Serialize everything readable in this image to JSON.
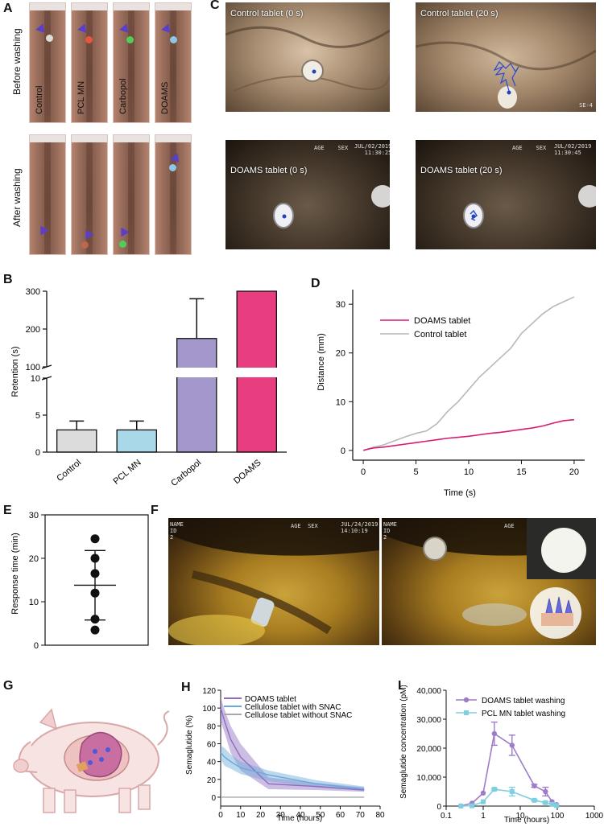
{
  "panels": {
    "A": "A",
    "B": "B",
    "C": "C",
    "D": "D",
    "E": "E",
    "F": "F",
    "G": "G",
    "H": "H",
    "I": "I"
  },
  "panel_a": {
    "row_labels": [
      "Before washing",
      "After washing"
    ],
    "columns": [
      "Control",
      "PCL MN",
      "Carbopol",
      "DOAMS"
    ],
    "colors": {
      "control_dot": "#dcdcdc",
      "pcl_dot": "#e8553c",
      "carbopol_dot": "#4fcf58",
      "doams_dot": "#8fc6e8",
      "arrow": "#5b3fc6"
    }
  },
  "panel_c": {
    "captions": [
      "Control tablet (0 s)",
      "Control tablet (20 s)",
      "DOAMS tablet (0 s)",
      "DOAMS tablet (20 s)"
    ],
    "hud": {
      "age": "AGE",
      "sex": "SEX",
      "date": "JUL/02/2019",
      "time1": "11:30:25",
      "time2": "11:30:45",
      "mark": "SE-4"
    }
  },
  "panel_f": {
    "hud": {
      "name": "NAME",
      "id": "ID",
      "id_value": "2",
      "age": "AGE",
      "sex": "SEX",
      "date": "JUL/24/2019",
      "time": "14:10:19"
    }
  },
  "chart_data": [
    {
      "panel": "B",
      "type": "bar",
      "categories": [
        "Control",
        "PCL MN",
        "Carbopol",
        "DOAMS"
      ],
      "values": [
        3,
        3,
        175,
        300
      ],
      "errors": [
        1.2,
        1.2,
        105,
        0
      ],
      "colors": [
        "#dcdcdc",
        "#a9d8e8",
        "#a497cc",
        "#e83e80"
      ],
      "ylabel": "Retention (s)",
      "ylim": [
        0,
        300
      ],
      "axis_break": [
        10,
        100
      ],
      "yticks": [
        "0",
        "5",
        "10",
        "100",
        "200",
        "300"
      ]
    },
    {
      "panel": "D",
      "type": "line",
      "xlabel": "Time (s)",
      "ylabel": "Distance (mm)",
      "xlim": [
        -1,
        21
      ],
      "ylim": [
        -2,
        33
      ],
      "xticks": [
        "0",
        "5",
        "10",
        "15",
        "20"
      ],
      "yticks": [
        "0",
        "10",
        "20",
        "30"
      ],
      "series": [
        {
          "name": "DOAMS tablet",
          "color": "#d81b72",
          "x": [
            0,
            0.5,
            1,
            2,
            3,
            4,
            5,
            6,
            7,
            8,
            9,
            10,
            11,
            12,
            13,
            14,
            15,
            16,
            17,
            18,
            19,
            20
          ],
          "y": [
            0,
            0.3,
            0.5,
            0.7,
            1.0,
            1.3,
            1.6,
            1.9,
            2.2,
            2.5,
            2.7,
            2.9,
            3.2,
            3.5,
            3.7,
            4.0,
            4.3,
            4.6,
            5.0,
            5.6,
            6.1,
            6.3
          ]
        },
        {
          "name": "Control tablet",
          "color": "#b8b8b8",
          "x": [
            0,
            0.5,
            1,
            1.5,
            2,
            3,
            4,
            5,
            6,
            7,
            8,
            9,
            10,
            11,
            12,
            13,
            14,
            15,
            16,
            17,
            18,
            19,
            20
          ],
          "y": [
            0,
            0.3,
            0.7,
            0.9,
            1.2,
            2.0,
            2.8,
            3.5,
            4.0,
            5.5,
            8.0,
            10.0,
            12.5,
            15.0,
            17.0,
            19.0,
            21.0,
            24.0,
            26.0,
            28.0,
            29.5,
            30.5,
            31.5
          ]
        }
      ]
    },
    {
      "panel": "E",
      "type": "scatter",
      "ylabel": "Response time (min)",
      "ylim": [
        0,
        30
      ],
      "yticks": [
        "0",
        "10",
        "20",
        "30"
      ],
      "points": [
        24.5,
        20,
        16.5,
        12,
        6,
        3.5
      ],
      "mean": 13.8,
      "sd_upper": 21.8,
      "sd_lower": 5.8
    },
    {
      "panel": "H",
      "type": "area",
      "xlabel": "Time (hours)",
      "ylabel": "Semaglutide (%)",
      "xlim": [
        0,
        80
      ],
      "ylim": [
        -10,
        120
      ],
      "xticks": [
        "0",
        "10",
        "20",
        "30",
        "40",
        "50",
        "60",
        "70",
        "80"
      ],
      "yticks": [
        "0",
        "20",
        "40",
        "60",
        "80",
        "100",
        "120"
      ],
      "series": [
        {
          "name": "DOAMS tablet",
          "color": "#8d6cc2",
          "x": [
            0,
            2,
            5,
            10,
            24,
            48,
            72
          ],
          "mean": [
            100,
            85,
            65,
            45,
            15,
            12,
            8
          ],
          "upper": [
            112,
            98,
            80,
            60,
            22,
            16,
            11
          ],
          "lower": [
            85,
            72,
            50,
            30,
            9,
            8,
            6
          ]
        },
        {
          "name": "Cellulose tablet with SNAC",
          "color": "#6aa9d8",
          "x": [
            0,
            2,
            5,
            10,
            24,
            48,
            72
          ],
          "mean": [
            50,
            45,
            40,
            33,
            25,
            15,
            9
          ],
          "upper": [
            58,
            55,
            48,
            40,
            30,
            19,
            12
          ],
          "lower": [
            42,
            35,
            32,
            26,
            18,
            11,
            7
          ]
        },
        {
          "name": "Cellulose tablet without SNAC",
          "color": "#a8a8a8",
          "x": [
            0,
            72
          ],
          "mean": [
            0,
            0
          ],
          "upper": [
            0,
            0
          ],
          "lower": [
            0,
            0
          ]
        }
      ]
    },
    {
      "panel": "I",
      "type": "line",
      "xscale": "log",
      "xlabel": "Time (hours)",
      "ylabel": "Semaglutide concentration (pM)",
      "xlim": [
        0.1,
        1000
      ],
      "ylim": [
        0,
        40000
      ],
      "xticks": [
        "0.1",
        "1",
        "10",
        "100",
        "1000"
      ],
      "yticks": [
        "0",
        "10,000",
        "20,000",
        "30,000",
        "40,000"
      ],
      "series": [
        {
          "name": "DOAMS tablet washing",
          "color": "#9d7cc9",
          "x": [
            0.25,
            0.5,
            1,
            2,
            6,
            24,
            48,
            72,
            96
          ],
          "y": [
            50,
            1000,
            4500,
            25000,
            21000,
            7000,
            5000,
            1500,
            500
          ],
          "err": [
            0,
            0,
            0,
            4000,
            3500,
            500,
            1500,
            0,
            0
          ]
        },
        {
          "name": "PCL MN tablet washing",
          "color": "#7fcfe0",
          "x": [
            0.25,
            0.5,
            1,
            2,
            6,
            24,
            48,
            72,
            96
          ],
          "y": [
            0,
            100,
            1500,
            5800,
            5000,
            2000,
            1200,
            600,
            200
          ],
          "err": [
            0,
            0,
            0,
            300,
            1500,
            200,
            300,
            0,
            0
          ]
        }
      ]
    }
  ]
}
